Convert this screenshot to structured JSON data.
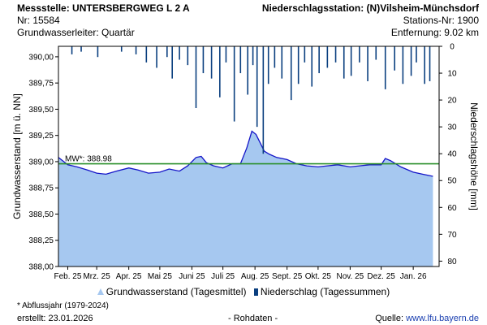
{
  "header": {
    "station_left": "Messstelle: UNTERSBERGWEG L 2 A",
    "number_left": "Nr: 15584",
    "aquifer": "Grundwasserleiter: Quartär",
    "station_right": "Niederschlagsstation: (N)Vilsheim-Münchsdorf",
    "number_right": "Stations-Nr: 1900",
    "distance": "Entfernung: 9.02 km"
  },
  "footer": {
    "note": "* Abflussjahr (1979-2024)",
    "created": "erstellt:  23.01.2026",
    "raw": "- Rohdaten -",
    "source_label": "Quelle:",
    "source_url": "www.lfu.bayern.de"
  },
  "legend": {
    "groundwater": "Grundwasserstand (Tagesmittel)",
    "precip": "Niederschlag (Tagessummen)"
  },
  "colors": {
    "groundwater_fill": "#a6c8f0",
    "groundwater_line": "#1414c8",
    "precip": "#0a3f7f",
    "mean_line": "#2a8f2a"
  },
  "chart_data": {
    "type": "area",
    "ylabel_left": "Grundwasserstand [m ü. NN]",
    "ylabel_right": "Niederschlagshöhe [mm]",
    "ylim_left": [
      388.0,
      390.1
    ],
    "ylim_right": [
      0,
      82
    ],
    "yticks_left": [
      "388,00",
      "388,25",
      "388,50",
      "388,75",
      "389,00",
      "389,25",
      "389,50",
      "389,75",
      "390,00"
    ],
    "yticks_right": [
      "0",
      "10",
      "20",
      "30",
      "40",
      "50",
      "60",
      "70",
      "80"
    ],
    "xticks": [
      "Feb. 25",
      "Mrz. 25",
      "Apr. 25",
      "Mai 25",
      "Juni 25",
      "Juli 25",
      "Aug. 25",
      "Sept. 25",
      "Okt. 25",
      "Nov. 25",
      "Dez. 25",
      "Jan. 26"
    ],
    "x_start": "2025-01-23",
    "x_end": "2026-01-26",
    "mean": {
      "label": "MW*: 388.98",
      "value": 388.98
    },
    "groundwater": {
      "dates": [
        "2025-01-23",
        "2025-02-01",
        "2025-02-10",
        "2025-02-20",
        "2025-03-01",
        "2025-03-10",
        "2025-03-20",
        "2025-04-01",
        "2025-04-10",
        "2025-04-20",
        "2025-05-01",
        "2025-05-10",
        "2025-05-20",
        "2025-05-28",
        "2025-06-05",
        "2025-06-10",
        "2025-06-15",
        "2025-06-22",
        "2025-07-01",
        "2025-07-10",
        "2025-07-18",
        "2025-07-24",
        "2025-07-29",
        "2025-08-02",
        "2025-08-06",
        "2025-08-10",
        "2025-08-15",
        "2025-08-22",
        "2025-09-01",
        "2025-09-10",
        "2025-09-20",
        "2025-10-01",
        "2025-10-10",
        "2025-10-20",
        "2025-11-01",
        "2025-11-10",
        "2025-11-20",
        "2025-12-01",
        "2025-12-05",
        "2025-12-10",
        "2025-12-20",
        "2026-01-01",
        "2026-01-10",
        "2026-01-20"
      ],
      "values": [
        389.04,
        388.97,
        388.95,
        388.92,
        388.89,
        388.88,
        388.91,
        388.94,
        388.92,
        388.89,
        388.9,
        388.93,
        388.91,
        388.96,
        389.04,
        389.05,
        388.99,
        388.96,
        388.94,
        388.98,
        388.98,
        389.13,
        389.29,
        389.26,
        389.18,
        389.1,
        389.07,
        389.04,
        389.02,
        388.98,
        388.96,
        388.95,
        388.96,
        388.97,
        388.95,
        388.96,
        388.97,
        388.97,
        389.03,
        389.01,
        388.95,
        388.9,
        388.88,
        388.86
      ]
    },
    "precipitation": {
      "dates": [
        "2025-02-05",
        "2025-02-14",
        "2025-03-02",
        "2025-03-25",
        "2025-04-08",
        "2025-04-18",
        "2025-04-28",
        "2025-05-08",
        "2025-05-13",
        "2025-05-20",
        "2025-05-28",
        "2025-06-05",
        "2025-06-12",
        "2025-06-20",
        "2025-06-28",
        "2025-07-04",
        "2025-07-12",
        "2025-07-18",
        "2025-07-25",
        "2025-07-30",
        "2025-08-03",
        "2025-08-09",
        "2025-08-14",
        "2025-08-20",
        "2025-08-27",
        "2025-09-05",
        "2025-09-12",
        "2025-09-18",
        "2025-09-25",
        "2025-10-02",
        "2025-10-10",
        "2025-10-18",
        "2025-10-26",
        "2025-11-02",
        "2025-11-10",
        "2025-11-18",
        "2025-11-26",
        "2025-12-05",
        "2025-12-14",
        "2025-12-22",
        "2025-12-30",
        "2026-01-04",
        "2026-01-12",
        "2026-01-17"
      ],
      "values": [
        3,
        2,
        4,
        2,
        3,
        6,
        8,
        4,
        12,
        5,
        7,
        23,
        10,
        12,
        19,
        6,
        28,
        10,
        18,
        7,
        30,
        40,
        14,
        8,
        12,
        20,
        14,
        6,
        15,
        10,
        8,
        6,
        12,
        11,
        6,
        13,
        5,
        16,
        9,
        14,
        11,
        6,
        14,
        13
      ]
    }
  }
}
